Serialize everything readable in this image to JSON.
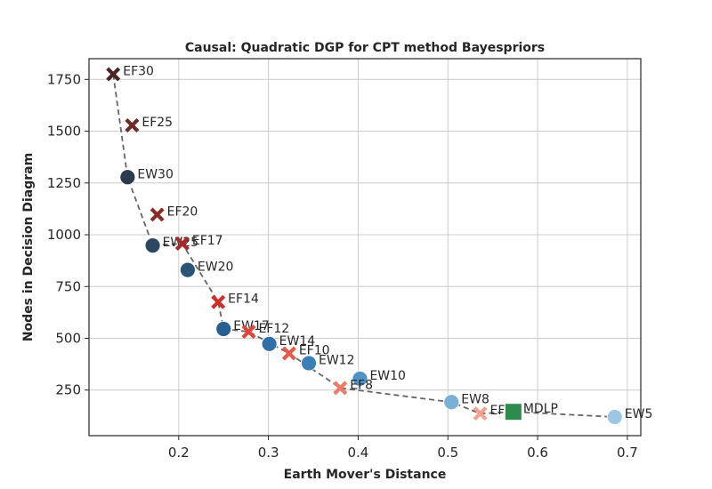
{
  "chart_data": {
    "type": "scatter",
    "title": "Causal: Quadratic DGP for CPT method Bayespriors",
    "xlabel": "Earth Mover's Distance",
    "ylabel": "Nodes in Decision Diagram",
    "xlim": [
      0.1,
      0.715
    ],
    "ylim": [
      30,
      1850
    ],
    "xticks": [
      0.2,
      0.3,
      0.4,
      0.5,
      0.6,
      0.7
    ],
    "xtick_labels": [
      "0.2",
      "0.3",
      "0.4",
      "0.5",
      "0.6",
      "0.7"
    ],
    "yticks": [
      250,
      500,
      750,
      1000,
      1250,
      1500,
      1750
    ],
    "ytick_labels": [
      "250",
      "500",
      "750",
      "1000",
      "1250",
      "1500",
      "1750"
    ],
    "grid": true,
    "frontier_order": [
      "EF30",
      "EW30",
      "EW25",
      "EF17",
      "EF14",
      "EW17",
      "EF12",
      "EF10",
      "EF8",
      "EW8",
      "EF5",
      "MDLP",
      "EW5"
    ],
    "points": [
      {
        "label": "EF30",
        "x": 0.127,
        "y": 1775,
        "marker": "x",
        "color": "#4a2525"
      },
      {
        "label": "EF25",
        "x": 0.148,
        "y": 1528,
        "marker": "x",
        "color": "#6e2a25"
      },
      {
        "label": "EW30",
        "x": 0.143,
        "y": 1278,
        "marker": "o",
        "color": "#2b3a4c"
      },
      {
        "label": "EF20",
        "x": 0.176,
        "y": 1097,
        "marker": "x",
        "color": "#8c2b26"
      },
      {
        "label": "EW25",
        "x": 0.171,
        "y": 948,
        "marker": "o",
        "color": "#2e4760"
      },
      {
        "label": "EF17",
        "x": 0.204,
        "y": 957,
        "marker": "x",
        "color": "#a8282a"
      },
      {
        "label": "EW20",
        "x": 0.21,
        "y": 830,
        "marker": "o",
        "color": "#2a5478"
      },
      {
        "label": "EF14",
        "x": 0.244,
        "y": 675,
        "marker": "x",
        "color": "#cf2e2b"
      },
      {
        "label": "EW17",
        "x": 0.25,
        "y": 545,
        "marker": "o",
        "color": "#2a6091"
      },
      {
        "label": "EF12",
        "x": 0.278,
        "y": 532,
        "marker": "x",
        "color": "#e0463a"
      },
      {
        "label": "EW14",
        "x": 0.301,
        "y": 473,
        "marker": "o",
        "color": "#306fa8"
      },
      {
        "label": "EF10",
        "x": 0.323,
        "y": 427,
        "marker": "x",
        "color": "#e8594a"
      },
      {
        "label": "EW12",
        "x": 0.345,
        "y": 380,
        "marker": "o",
        "color": "#3a7fb8"
      },
      {
        "label": "EW10",
        "x": 0.402,
        "y": 305,
        "marker": "o",
        "color": "#4f92c6"
      },
      {
        "label": "EF8",
        "x": 0.38,
        "y": 260,
        "marker": "x",
        "color": "#ee7a68"
      },
      {
        "label": "EW8",
        "x": 0.504,
        "y": 192,
        "marker": "o",
        "color": "#7aafd6"
      },
      {
        "label": "EF5",
        "x": 0.536,
        "y": 137,
        "marker": "x",
        "color": "#f4a08e"
      },
      {
        "label": "MDLP",
        "x": 0.573,
        "y": 145,
        "marker": "s",
        "color": "#2e8b4e"
      },
      {
        "label": "EW5",
        "x": 0.686,
        "y": 120,
        "marker": "o",
        "color": "#9dc5e4"
      }
    ]
  }
}
